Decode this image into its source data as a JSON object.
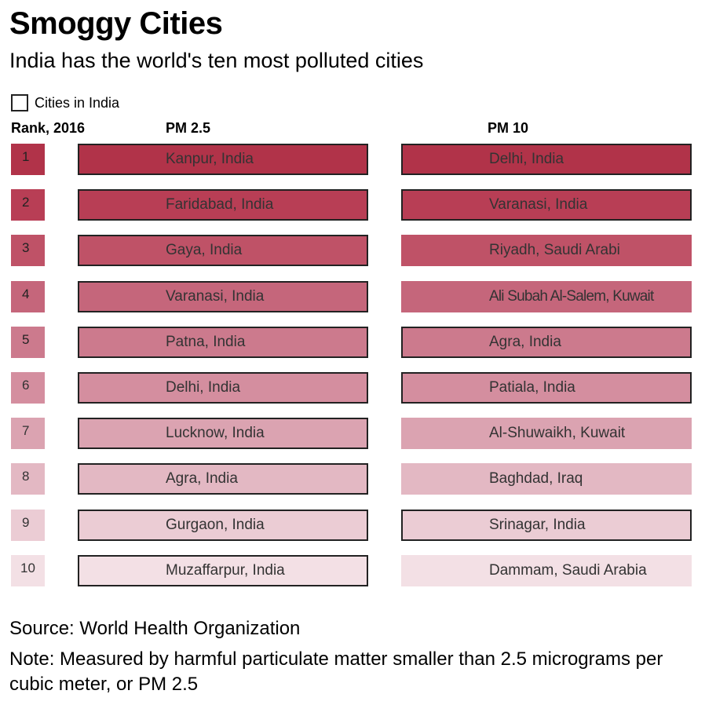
{
  "title": "Smoggy Cities",
  "subtitle": "India has the world's ten most polluted cities",
  "legend": {
    "label": "Cities in India"
  },
  "columns": {
    "rank": "Rank, 2016",
    "pm25": "PM 2.5",
    "pm10": "PM 10"
  },
  "rank_colors": [
    "#b13349",
    "#b83e55",
    "#bf5267",
    "#c5667b",
    "#cc7a8d",
    "#d48e9f",
    "#dba3b1",
    "#e3b8c3",
    "#ebccd4",
    "#f3e0e5"
  ],
  "chart_data": {
    "type": "table",
    "title": "Smoggy Cities",
    "subtitle": "India has the world's ten most polluted cities",
    "ranks": [
      "1",
      "2",
      "3",
      "4",
      "5",
      "6",
      "7",
      "8",
      "9",
      "10"
    ],
    "pm25": [
      {
        "city": "Kanpur, India",
        "in_india": true
      },
      {
        "city": "Faridabad, India",
        "in_india": true
      },
      {
        "city": "Gaya, India",
        "in_india": true
      },
      {
        "city": "Varanasi, India",
        "in_india": true
      },
      {
        "city": "Patna, India",
        "in_india": true
      },
      {
        "city": "Delhi, India",
        "in_india": true
      },
      {
        "city": "Lucknow, India",
        "in_india": true
      },
      {
        "city": "Agra, India",
        "in_india": true
      },
      {
        "city": "Gurgaon, India",
        "in_india": true
      },
      {
        "city": "Muzaffarpur, India",
        "in_india": true
      }
    ],
    "pm10": [
      {
        "city": "Delhi, India",
        "in_india": true
      },
      {
        "city": "Varanasi, India",
        "in_india": true
      },
      {
        "city": "Riyadh, Saudi Arabi",
        "in_india": false
      },
      {
        "city": "Ali Subah Al-Salem, Kuwait",
        "in_india": false
      },
      {
        "city": "Agra, India",
        "in_india": true
      },
      {
        "city": "Patiala, India",
        "in_india": true
      },
      {
        "city": "Al-Shuwaikh, Kuwait",
        "in_india": false
      },
      {
        "city": "Baghdad, Iraq",
        "in_india": false
      },
      {
        "city": "Srinagar, India",
        "in_india": true
      },
      {
        "city": "Dammam, Saudi Arabia",
        "in_india": false
      }
    ]
  },
  "source": "Source: World Health Organization",
  "note": "Note: Measured by harmful particulate matter smaller than 2.5 micrograms per cubic meter, or PM 2.5"
}
